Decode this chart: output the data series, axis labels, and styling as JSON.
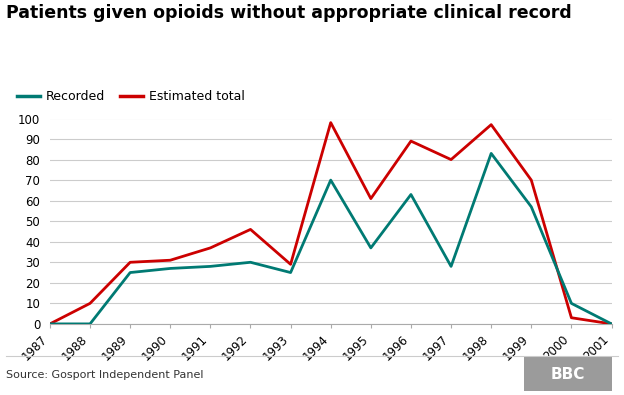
{
  "title": "Patients given opioids without appropriate clinical record",
  "years": [
    1987,
    1988,
    1989,
    1990,
    1991,
    1992,
    1993,
    1994,
    1995,
    1996,
    1997,
    1998,
    1999,
    2000,
    2001
  ],
  "recorded": [
    0,
    0,
    25,
    27,
    28,
    30,
    25,
    70,
    37,
    63,
    28,
    83,
    57,
    10,
    0
  ],
  "estimated": [
    0,
    10,
    30,
    31,
    37,
    46,
    29,
    98,
    61,
    89,
    80,
    97,
    70,
    3,
    0
  ],
  "recorded_color": "#007a73",
  "estimated_color": "#cc0000",
  "background_color": "#ffffff",
  "grid_color": "#cccccc",
  "ylim": [
    0,
    100
  ],
  "yticks": [
    0,
    10,
    20,
    30,
    40,
    50,
    60,
    70,
    80,
    90,
    100
  ],
  "source_text": "Source: Gosport Independent Panel",
  "bbc_box_color": "#9b9b9b",
  "bbc_text": "BBC",
  "legend_recorded": "Recorded",
  "legend_estimated": "Estimated total",
  "linewidth": 2.0
}
